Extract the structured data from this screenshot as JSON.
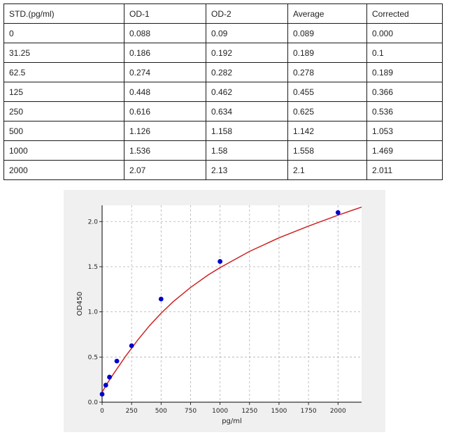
{
  "table": {
    "headers": [
      "STD.(pg/ml)",
      "OD-1",
      "OD-2",
      "Average",
      "Corrected"
    ],
    "rows": [
      [
        "0",
        "0.088",
        "0.09",
        "0.089",
        "0.000"
      ],
      [
        "31.25",
        "0.186",
        "0.192",
        "0.189",
        "0.1"
      ],
      [
        "62.5",
        "0.274",
        "0.282",
        "0.278",
        "0.189"
      ],
      [
        "125",
        "0.448",
        "0.462",
        "0.455",
        "0.366"
      ],
      [
        "250",
        "0.616",
        "0.634",
        "0.625",
        "0.536"
      ],
      [
        "500",
        "1.126",
        "1.158",
        "1.142",
        "1.053"
      ],
      [
        "1000",
        "1.536",
        "1.58",
        "1.558",
        "1.469"
      ],
      [
        "2000",
        "2.07",
        "2.13",
        "2.1",
        "2.011"
      ]
    ]
  },
  "chart_data": {
    "type": "scatter",
    "title": "",
    "xlabel": "pg/ml",
    "ylabel": "OD450",
    "xlim": [
      0,
      2200
    ],
    "ylim": [
      0,
      2.18
    ],
    "x_ticks": [
      0,
      250,
      500,
      750,
      1000,
      1250,
      1500,
      1750,
      2000
    ],
    "y_ticks": [
      0.0,
      0.5,
      1.0,
      1.5,
      2.0
    ],
    "y_tick_labels": [
      "0.0",
      "0.5",
      "1.0",
      "1.5",
      "2.0"
    ],
    "grid": true,
    "grid_style": "dashed",
    "points": {
      "x": [
        0,
        31.25,
        62.5,
        125,
        250,
        500,
        1000,
        2000
      ],
      "y": [
        0.089,
        0.189,
        0.278,
        0.455,
        0.625,
        1.142,
        1.558,
        2.1
      ]
    },
    "fit_curve": {
      "x": [
        0,
        20,
        50,
        100,
        150,
        200,
        300,
        400,
        500,
        600,
        750,
        900,
        1000,
        1250,
        1500,
        1750,
        2000,
        2200
      ],
      "y": [
        0.11,
        0.155,
        0.22,
        0.32,
        0.415,
        0.51,
        0.685,
        0.845,
        0.985,
        1.11,
        1.27,
        1.41,
        1.49,
        1.67,
        1.82,
        1.95,
        2.07,
        2.16
      ]
    },
    "colors": {
      "points": "#0000cc",
      "curve": "#cc2222",
      "grid": "#b0b0b0",
      "panel_background": "#f0f0f0",
      "plot_background": "#ffffff"
    }
  }
}
